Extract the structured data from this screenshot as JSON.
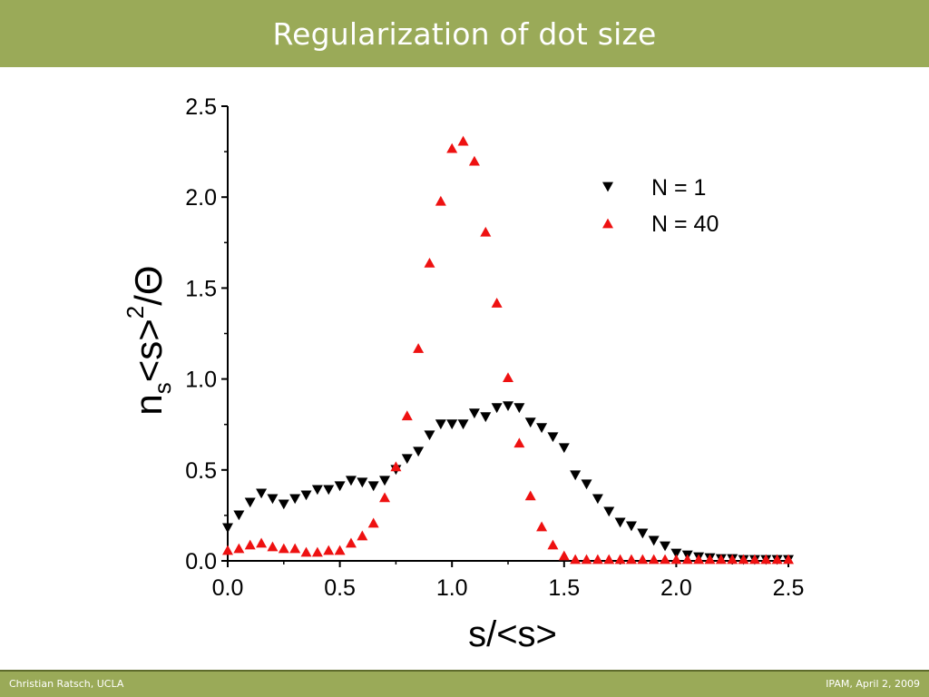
{
  "slide": {
    "title": "Regularization of dot size",
    "footer_left": "Christian Ratsch, UCLA",
    "footer_right": "IPAM, April 2, 2009",
    "accent_color": "#9aaa58"
  },
  "chart_data": {
    "type": "scatter",
    "title": "",
    "xlabel": "s/<s>",
    "ylabel_parts": {
      "main": "n",
      "sub": "s",
      "middle": "<s>",
      "sup": "2",
      "end": "/Θ"
    },
    "xlim": [
      0.0,
      2.5
    ],
    "ylim": [
      0.0,
      2.5
    ],
    "x_ticks": [
      "0.0",
      "0.5",
      "1.0",
      "1.5",
      "2.0",
      "2.5"
    ],
    "y_ticks": [
      "0.0",
      "0.5",
      "1.0",
      "1.5",
      "2.0",
      "2.5"
    ],
    "legend_position": "top-right",
    "grid": false,
    "series": [
      {
        "name": "N = 1",
        "marker": "triangle-down",
        "color": "#000000",
        "x": [
          0.0,
          0.05,
          0.1,
          0.15,
          0.2,
          0.25,
          0.3,
          0.35,
          0.4,
          0.45,
          0.5,
          0.55,
          0.6,
          0.65,
          0.7,
          0.75,
          0.8,
          0.85,
          0.9,
          0.95,
          1.0,
          1.05,
          1.1,
          1.15,
          1.2,
          1.25,
          1.3,
          1.35,
          1.4,
          1.45,
          1.5,
          1.55,
          1.6,
          1.65,
          1.7,
          1.75,
          1.8,
          1.85,
          1.9,
          1.95,
          2.0,
          2.05,
          2.1,
          2.15,
          2.2,
          2.25,
          2.3,
          2.35,
          2.4,
          2.45,
          2.5
        ],
        "y": [
          0.18,
          0.25,
          0.32,
          0.37,
          0.34,
          0.31,
          0.34,
          0.36,
          0.39,
          0.39,
          0.41,
          0.44,
          0.43,
          0.41,
          0.44,
          0.5,
          0.56,
          0.6,
          0.69,
          0.75,
          0.75,
          0.75,
          0.81,
          0.79,
          0.84,
          0.85,
          0.84,
          0.76,
          0.73,
          0.68,
          0.62,
          0.47,
          0.42,
          0.34,
          0.27,
          0.21,
          0.19,
          0.15,
          0.11,
          0.08,
          0.04,
          0.03,
          0.02,
          0.015,
          0.01,
          0.01,
          0.005,
          0.005,
          0.005,
          0.005,
          0.005
        ]
      },
      {
        "name": "N = 40",
        "marker": "triangle-up",
        "color": "#ee1111",
        "x": [
          0.0,
          0.05,
          0.1,
          0.15,
          0.2,
          0.25,
          0.3,
          0.35,
          0.4,
          0.45,
          0.5,
          0.55,
          0.6,
          0.65,
          0.7,
          0.75,
          0.8,
          0.85,
          0.9,
          0.95,
          1.0,
          1.05,
          1.1,
          1.15,
          1.2,
          1.25,
          1.3,
          1.35,
          1.4,
          1.45,
          1.5,
          1.55,
          1.6,
          1.65,
          1.7,
          1.75,
          1.8,
          1.85,
          1.9,
          1.95,
          2.0,
          2.05,
          2.1,
          2.15,
          2.2,
          2.25,
          2.3,
          2.35,
          2.4,
          2.45,
          2.5
        ],
        "y": [
          0.06,
          0.07,
          0.09,
          0.1,
          0.08,
          0.07,
          0.07,
          0.05,
          0.05,
          0.06,
          0.06,
          0.1,
          0.14,
          0.21,
          0.35,
          0.52,
          0.8,
          1.17,
          1.64,
          1.98,
          2.27,
          2.31,
          2.2,
          1.81,
          1.42,
          1.01,
          0.65,
          0.36,
          0.19,
          0.09,
          0.03,
          0.01,
          0.01,
          0.01,
          0.01,
          0.01,
          0.01,
          0.01,
          0.01,
          0.01,
          0.01,
          0.01,
          0.01,
          0.01,
          0.01,
          0.01,
          0.01,
          0.01,
          0.01,
          0.01,
          0.01
        ]
      }
    ]
  }
}
